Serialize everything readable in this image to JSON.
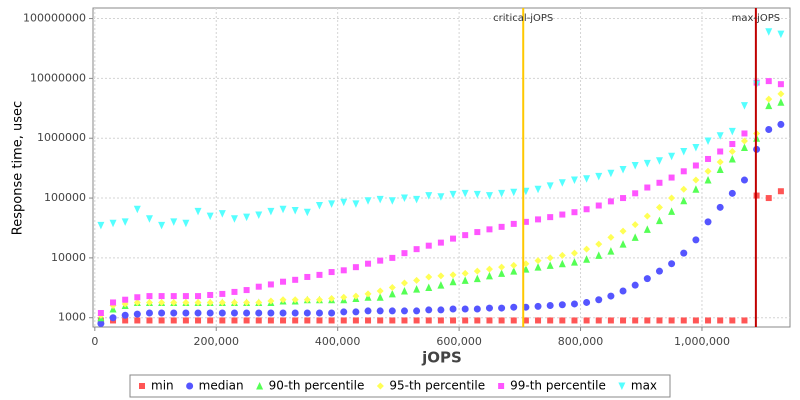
{
  "chart_data": {
    "type": "scatter",
    "x_label": "jOPS",
    "y_label": "Response time, usec",
    "yscale": "log",
    "grid": true,
    "xlim": [
      -3000,
      1145000
    ],
    "ylim": [
      700,
      150000000
    ],
    "xticks": [
      {
        "value": 0,
        "label": "0"
      },
      {
        "value": 200000,
        "label": "200,000"
      },
      {
        "value": 400000,
        "label": "400,000"
      },
      {
        "value": 600000,
        "label": "600,000"
      },
      {
        "value": 800000,
        "label": "800,000"
      },
      {
        "value": 1000000,
        "label": "1,000,000"
      }
    ],
    "yticks": [
      1000,
      10000,
      100000,
      1000000,
      10000000,
      100000000
    ],
    "markers": [
      {
        "label": "critical-jOPS",
        "value": 705600,
        "color": "#ffc800"
      },
      {
        "label": "max-jOPS",
        "value": 1088800,
        "color": "#c00000"
      }
    ],
    "x": [
      10000,
      30000,
      50000,
      70000,
      90000,
      110000,
      130000,
      150000,
      170000,
      190000,
      210000,
      230000,
      250000,
      270000,
      290000,
      310000,
      330000,
      350000,
      370000,
      390000,
      410000,
      430000,
      450000,
      470000,
      490000,
      510000,
      530000,
      550000,
      570000,
      590000,
      610000,
      630000,
      650000,
      670000,
      690000,
      710000,
      730000,
      750000,
      770000,
      790000,
      810000,
      830000,
      850000,
      870000,
      890000,
      910000,
      930000,
      950000,
      970000,
      990000,
      1010000,
      1030000,
      1050000,
      1070000,
      1090000,
      1110000,
      1130000
    ],
    "series": [
      {
        "name": "min",
        "color": "#ff5555",
        "marker": "square",
        "values": [
          900,
          900,
          900,
          900,
          900,
          900,
          900,
          900,
          900,
          900,
          900,
          900,
          900,
          900,
          900,
          900,
          900,
          900,
          900,
          900,
          900,
          900,
          900,
          900,
          900,
          900,
          900,
          900,
          900,
          900,
          900,
          900,
          900,
          900,
          900,
          900,
          900,
          900,
          900,
          900,
          900,
          900,
          900,
          900,
          900,
          900,
          900,
          900,
          900,
          900,
          900,
          900,
          900,
          900,
          110000,
          100000,
          130000
        ]
      },
      {
        "name": "median",
        "color": "#5555ff",
        "marker": "circle",
        "values": [
          800,
          1000,
          1100,
          1150,
          1200,
          1200,
          1200,
          1200,
          1200,
          1200,
          1200,
          1200,
          1200,
          1200,
          1200,
          1200,
          1200,
          1200,
          1200,
          1200,
          1250,
          1250,
          1300,
          1300,
          1300,
          1300,
          1300,
          1350,
          1350,
          1400,
          1400,
          1400,
          1450,
          1450,
          1500,
          1500,
          1550,
          1600,
          1650,
          1700,
          1800,
          2000,
          2300,
          2800,
          3500,
          4500,
          6000,
          8000,
          12000,
          20000,
          40000,
          70000,
          120000,
          200000,
          650000,
          1400000,
          1700000
        ]
      },
      {
        "name": "90-th percentile",
        "color": "#55ff55",
        "marker": "triangle",
        "values": [
          1000,
          1400,
          1600,
          1800,
          1800,
          1800,
          1800,
          1800,
          1800,
          1800,
          1800,
          1800,
          1800,
          1800,
          1800,
          1900,
          1900,
          2000,
          2000,
          2000,
          2000,
          2100,
          2200,
          2200,
          2500,
          2800,
          3000,
          3200,
          3500,
          4000,
          4200,
          4500,
          5000,
          5500,
          6000,
          6500,
          7000,
          7500,
          8000,
          8500,
          9500,
          11000,
          13000,
          17000,
          22000,
          30000,
          42000,
          60000,
          90000,
          140000,
          200000,
          300000,
          450000,
          700000,
          1000000,
          3500000,
          4000000
        ]
      },
      {
        "name": "95-th percentile",
        "color": "#ffff55",
        "marker": "diamond",
        "values": [
          1100,
          1600,
          1700,
          1800,
          1800,
          1800,
          1800,
          1800,
          1800,
          1800,
          1800,
          1800,
          1800,
          1800,
          1900,
          2000,
          2000,
          2000,
          2000,
          2100,
          2200,
          2300,
          2500,
          2800,
          3200,
          3800,
          4200,
          4800,
          5000,
          5200,
          5500,
          6000,
          6500,
          7000,
          7500,
          8000,
          9000,
          10000,
          11000,
          12000,
          14000,
          17000,
          22000,
          28000,
          36000,
          50000,
          70000,
          100000,
          140000,
          200000,
          280000,
          400000,
          600000,
          900000,
          1200000,
          4500000,
          5500000
        ]
      },
      {
        "name": "99-th percentile",
        "color": "#ff55ff",
        "marker": "square",
        "values": [
          1200,
          1800,
          2000,
          2200,
          2300,
          2300,
          2300,
          2300,
          2300,
          2400,
          2500,
          2700,
          2900,
          3300,
          3600,
          4000,
          4300,
          4800,
          5200,
          5800,
          6200,
          7000,
          8000,
          9000,
          10000,
          12000,
          14000,
          16000,
          18000,
          21000,
          24000,
          27000,
          30000,
          33000,
          37000,
          40000,
          44000,
          48000,
          53000,
          58000,
          65000,
          75000,
          88000,
          100000,
          120000,
          150000,
          180000,
          220000,
          280000,
          350000,
          450000,
          600000,
          800000,
          1200000,
          8500000,
          9000000,
          8000000
        ]
      },
      {
        "name": "max",
        "color": "#55ffff",
        "marker": "down-triangle",
        "values": [
          35000,
          38000,
          40000,
          65000,
          45000,
          35000,
          40000,
          38000,
          60000,
          50000,
          55000,
          45000,
          48000,
          52000,
          60000,
          65000,
          62000,
          58000,
          75000,
          80000,
          85000,
          80000,
          90000,
          95000,
          90000,
          100000,
          95000,
          110000,
          105000,
          115000,
          120000,
          115000,
          110000,
          120000,
          125000,
          130000,
          140000,
          160000,
          180000,
          200000,
          210000,
          230000,
          260000,
          300000,
          350000,
          380000,
          420000,
          500000,
          600000,
          700000,
          900000,
          1100000,
          1300000,
          3500000,
          8000000,
          60000000,
          55000000
        ]
      }
    ]
  }
}
